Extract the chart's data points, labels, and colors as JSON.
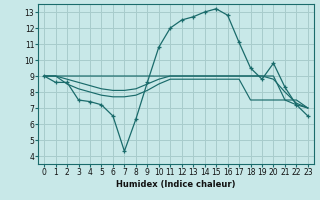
{
  "xlabel": "Humidex (Indice chaleur)",
  "bg_color": "#c8e8e8",
  "grid_color": "#a8cccc",
  "line_color": "#1a6b6b",
  "xlim": [
    -0.5,
    23.5
  ],
  "ylim": [
    3.5,
    13.5
  ],
  "xticks": [
    0,
    1,
    2,
    3,
    4,
    5,
    6,
    7,
    8,
    9,
    10,
    11,
    12,
    13,
    14,
    15,
    16,
    17,
    18,
    19,
    20,
    21,
    22,
    23
  ],
  "yticks": [
    4,
    5,
    6,
    7,
    8,
    9,
    10,
    11,
    12,
    13
  ],
  "main_series": [
    9.0,
    8.6,
    8.6,
    7.5,
    7.4,
    7.2,
    6.5,
    4.3,
    6.3,
    8.6,
    10.8,
    12.0,
    12.5,
    12.7,
    13.0,
    13.2,
    12.8,
    11.1,
    9.5,
    8.8,
    9.8,
    8.3,
    7.2,
    6.5
  ],
  "envelope1": [
    9.0,
    9.0,
    9.0,
    9.0,
    9.0,
    9.0,
    9.0,
    9.0,
    9.0,
    9.0,
    9.0,
    9.0,
    9.0,
    9.0,
    9.0,
    9.0,
    9.0,
    9.0,
    9.0,
    9.0,
    9.0,
    7.5,
    7.2,
    7.0
  ],
  "envelope2": [
    9.0,
    9.0,
    8.8,
    8.6,
    8.4,
    8.2,
    8.1,
    8.1,
    8.2,
    8.5,
    8.8,
    9.0,
    9.0,
    9.0,
    9.0,
    9.0,
    9.0,
    9.0,
    9.0,
    9.0,
    8.8,
    8.0,
    7.3,
    7.0
  ],
  "envelope3": [
    9.0,
    9.0,
    8.5,
    8.2,
    8.0,
    7.8,
    7.7,
    7.7,
    7.8,
    8.1,
    8.5,
    8.8,
    8.8,
    8.8,
    8.8,
    8.8,
    8.8,
    8.8,
    7.5,
    7.5,
    7.5,
    7.5,
    7.5,
    7.0
  ]
}
